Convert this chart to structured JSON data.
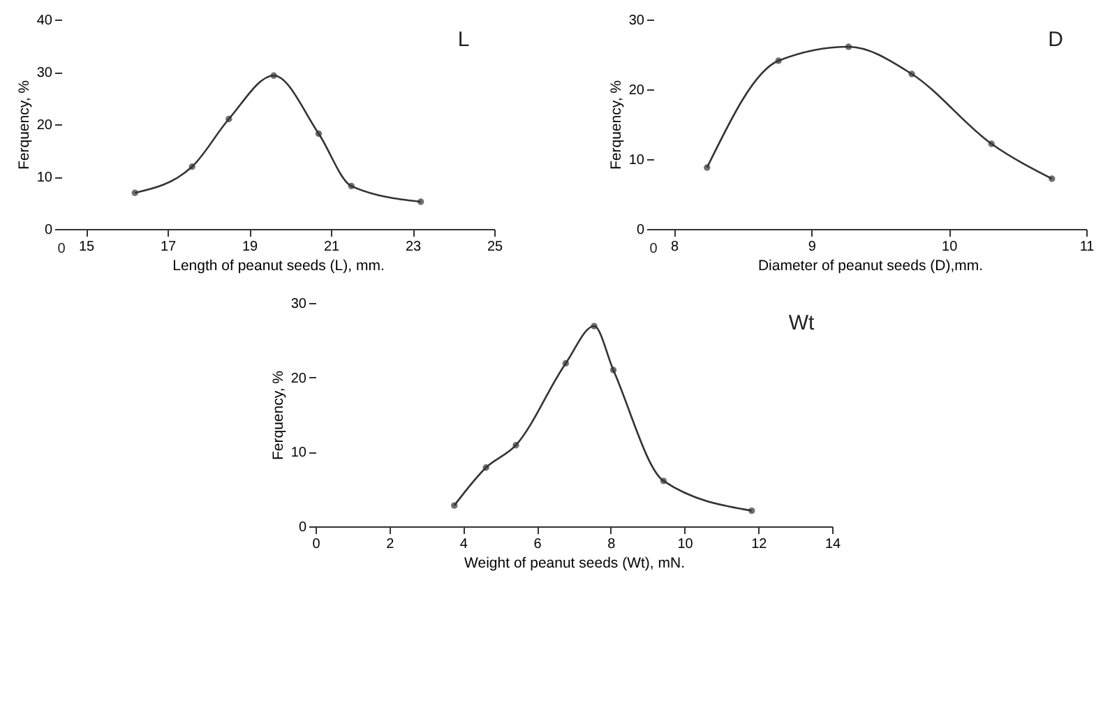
{
  "chart_data": [
    {
      "type": "line",
      "xlabel": "Length of peanut seeds (L), mm.",
      "ylabel": "Ferquency, %",
      "annotations": [
        "L",
        "0"
      ],
      "x": [
        16.2,
        17.6,
        18.5,
        19.6,
        20.7,
        21.5,
        23.2
      ],
      "values": [
        6.9,
        11.9,
        21.0,
        29.3,
        18.2,
        8.2,
        5.2
      ],
      "color": "#333333",
      "xlim": [
        14.4,
        25
      ],
      "xticks": [
        15,
        17,
        19,
        21,
        23,
        25
      ],
      "ylim": [
        0,
        40
      ],
      "yticks": [
        0,
        10,
        20,
        30,
        40
      ],
      "marker": "circle",
      "line_style": "solid",
      "grid": false
    },
    {
      "type": "line",
      "xlabel": "Diameter of peanut seeds (D),mm.",
      "ylabel": "Ferquency, %",
      "annotations": [
        "D",
        "0"
      ],
      "x": [
        8.24,
        8.76,
        9.27,
        9.73,
        10.31,
        10.75
      ],
      "values": [
        8.8,
        24.1,
        26.1,
        22.2,
        12.2,
        7.2
      ],
      "color": "#333333",
      "xlim": [
        7.85,
        11
      ],
      "xticks": [
        8,
        9,
        10,
        11
      ],
      "ylim": [
        0,
        30
      ],
      "yticks": [
        0,
        10,
        20,
        30
      ],
      "marker": "circle",
      "line_style": "solid",
      "grid": false
    },
    {
      "type": "line",
      "xlabel": "Weight of peanut seeds (Wt), mN.",
      "ylabel": "Ferquency, %",
      "annotations": [
        "Wt"
      ],
      "x": [
        3.76,
        4.62,
        5.43,
        6.78,
        7.55,
        8.07,
        9.43,
        11.82
      ],
      "values": [
        2.8,
        7.9,
        10.9,
        21.9,
        26.9,
        21.0,
        6.1,
        2.1
      ],
      "color": "#333333",
      "xlim": [
        0,
        14
      ],
      "xticks": [
        0,
        2,
        4,
        6,
        8,
        10,
        12,
        14
      ],
      "ylim": [
        0,
        30
      ],
      "yticks": [
        0,
        10,
        20,
        30
      ],
      "marker": "circle",
      "line_style": "solid",
      "grid": false
    }
  ]
}
